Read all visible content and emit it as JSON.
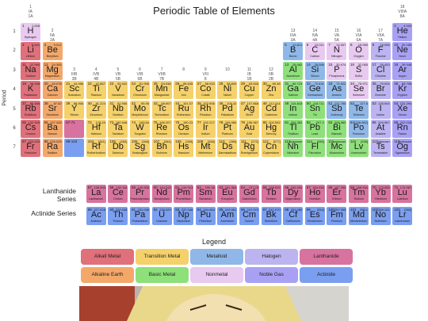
{
  "title": "Periodic Table of Elements",
  "period_label": "Period",
  "lanthanide_label": "Lanthanide Series",
  "actinide_label": "Actinide Series",
  "legend_title": "Legend",
  "colors": {
    "alkali": "#e0707a",
    "alkaline": "#f3a86a",
    "transition": "#f5d16b",
    "metalloid": "#8fb8e8",
    "nonmetal": "#e8c9f0",
    "halogen": "#bbb4f0",
    "noble": "#a8a1f3",
    "basic": "#8ee07a",
    "lanthanide": "#d7739e",
    "actinide": "#7a9ef0"
  },
  "legend": [
    {
      "label": "Alkali Metal",
      "cat": "alkali"
    },
    {
      "label": "Transition Metal",
      "cat": "transition"
    },
    {
      "label": "Metalloid",
      "cat": "metalloid"
    },
    {
      "label": "Halogen",
      "cat": "halogen"
    },
    {
      "label": "Lanthanide",
      "cat": "lanthanide"
    },
    {
      "label": "Alkaline Earth",
      "cat": "alkaline"
    },
    {
      "label": "Basic Metal",
      "cat": "basic"
    },
    {
      "label": "Nonmetal",
      "cat": "nonmetal"
    },
    {
      "label": "Noble Gas",
      "cat": "noble"
    },
    {
      "label": "Actinide",
      "cat": "actinide"
    }
  ],
  "groups": [
    {
      "g": 1,
      "text": "1\nIA\n1A"
    },
    {
      "g": 2,
      "text": "2\nIIA\n2A"
    },
    {
      "g": 3,
      "text": "3\nIIIB\n3B"
    },
    {
      "g": 4,
      "text": "4\nIVB\n4B"
    },
    {
      "g": 5,
      "text": "5\nVB\n5B"
    },
    {
      "g": 6,
      "text": "6\nVIB\n6B"
    },
    {
      "g": 7,
      "text": "7\nVIIB\n7B"
    },
    {
      "g": 8,
      "text": "8\n"
    },
    {
      "g": 9,
      "text": "9\nVIII\n8"
    },
    {
      "g": 10,
      "text": "10\n"
    },
    {
      "g": 11,
      "text": "11\nIB\n1B"
    },
    {
      "g": 12,
      "text": "12\nIIB\n2B"
    },
    {
      "g": 13,
      "text": "13\nIIIA\n3A"
    },
    {
      "g": 14,
      "text": "14\nIVA\n4A"
    },
    {
      "g": 15,
      "text": "15\nVA\n5A"
    },
    {
      "g": 16,
      "text": "16\nVIA\n6A"
    },
    {
      "g": 17,
      "text": "17\nVIIA\n7A"
    },
    {
      "g": 18,
      "text": "18\nVIIIA\n8A"
    }
  ],
  "periods": [
    "1",
    "2",
    "3",
    "4",
    "5",
    "6",
    "7"
  ],
  "elements": [
    {
      "n": 1,
      "s": "H",
      "name": "Hydrogen",
      "m": "1.008",
      "g": 1,
      "p": 1,
      "c": "nonmetal"
    },
    {
      "n": 2,
      "s": "He",
      "name": "Helium",
      "m": "4.003",
      "g": 18,
      "p": 1,
      "c": "noble"
    },
    {
      "n": 3,
      "s": "Li",
      "name": "Lithium",
      "m": "6.941",
      "g": 1,
      "p": 2,
      "c": "alkali"
    },
    {
      "n": 4,
      "s": "Be",
      "name": "Beryllium",
      "m": "9.012",
      "g": 2,
      "p": 2,
      "c": "alkaline"
    },
    {
      "n": 5,
      "s": "B",
      "name": "Boron",
      "m": "10.811",
      "g": 13,
      "p": 2,
      "c": "metalloid"
    },
    {
      "n": 6,
      "s": "C",
      "name": "Carbon",
      "m": "12.011",
      "g": 14,
      "p": 2,
      "c": "nonmetal"
    },
    {
      "n": 7,
      "s": "N",
      "name": "Nitrogen",
      "m": "14.007",
      "g": 15,
      "p": 2,
      "c": "nonmetal"
    },
    {
      "n": 8,
      "s": "O",
      "name": "Oxygen",
      "m": "15.999",
      "g": 16,
      "p": 2,
      "c": "nonmetal"
    },
    {
      "n": 9,
      "s": "F",
      "name": "Fluorine",
      "m": "18.998",
      "g": 17,
      "p": 2,
      "c": "halogen"
    },
    {
      "n": 10,
      "s": "Ne",
      "name": "Neon",
      "m": "20.180",
      "g": 18,
      "p": 2,
      "c": "noble"
    },
    {
      "n": 11,
      "s": "Na",
      "name": "Sodium",
      "m": "22.990",
      "g": 1,
      "p": 3,
      "c": "alkali"
    },
    {
      "n": 12,
      "s": "Mg",
      "name": "Magnesium",
      "m": "24.305",
      "g": 2,
      "p": 3,
      "c": "alkaline"
    },
    {
      "n": 13,
      "s": "Al",
      "name": "Aluminium",
      "m": "26.982",
      "g": 13,
      "p": 3,
      "c": "basic"
    },
    {
      "n": 14,
      "s": "Si",
      "name": "Silicon",
      "m": "28.086",
      "g": 14,
      "p": 3,
      "c": "metalloid"
    },
    {
      "n": 15,
      "s": "P",
      "name": "Phosphorus",
      "m": "30.974",
      "g": 15,
      "p": 3,
      "c": "nonmetal"
    },
    {
      "n": 16,
      "s": "S",
      "name": "Sulfur",
      "m": "32.065",
      "g": 16,
      "p": 3,
      "c": "nonmetal"
    },
    {
      "n": 17,
      "s": "Cl",
      "name": "Chlorine",
      "m": "35.453",
      "g": 17,
      "p": 3,
      "c": "halogen"
    },
    {
      "n": 18,
      "s": "Ar",
      "name": "Argon",
      "m": "39.948",
      "g": 18,
      "p": 3,
      "c": "noble"
    },
    {
      "n": 19,
      "s": "K",
      "name": "Potassium",
      "m": "39.098",
      "g": 1,
      "p": 4,
      "c": "alkali"
    },
    {
      "n": 20,
      "s": "Ca",
      "name": "Calcium",
      "m": "40.078",
      "g": 2,
      "p": 4,
      "c": "alkaline"
    },
    {
      "n": 21,
      "s": "Sc",
      "name": "Scandium",
      "m": "44.956",
      "g": 3,
      "p": 4,
      "c": "transition"
    },
    {
      "n": 22,
      "s": "Ti",
      "name": "Titanium",
      "m": "47.867",
      "g": 4,
      "p": 4,
      "c": "transition"
    },
    {
      "n": 23,
      "s": "V",
      "name": "Vanadium",
      "m": "50.942",
      "g": 5,
      "p": 4,
      "c": "transition"
    },
    {
      "n": 24,
      "s": "Cr",
      "name": "Chromium",
      "m": "51.996",
      "g": 6,
      "p": 4,
      "c": "transition"
    },
    {
      "n": 25,
      "s": "Mn",
      "name": "Manganese",
      "m": "54.938",
      "g": 7,
      "p": 4,
      "c": "transition"
    },
    {
      "n": 26,
      "s": "Fe",
      "name": "Iron",
      "m": "55.845",
      "g": 8,
      "p": 4,
      "c": "transition"
    },
    {
      "n": 27,
      "s": "Co",
      "name": "Cobalt",
      "m": "58.933",
      "g": 9,
      "p": 4,
      "c": "transition"
    },
    {
      "n": 28,
      "s": "Ni",
      "name": "Nickel",
      "m": "58.693",
      "g": 10,
      "p": 4,
      "c": "transition"
    },
    {
      "n": 29,
      "s": "Cu",
      "name": "Copper",
      "m": "63.546",
      "g": 11,
      "p": 4,
      "c": "transition"
    },
    {
      "n": 30,
      "s": "Zn",
      "name": "Zinc",
      "m": "65.38",
      "g": 12,
      "p": 4,
      "c": "transition"
    },
    {
      "n": 31,
      "s": "Ga",
      "name": "Gallium",
      "m": "69.723",
      "g": 13,
      "p": 4,
      "c": "basic"
    },
    {
      "n": 32,
      "s": "Ge",
      "name": "Germanium",
      "m": "72.631",
      "g": 14,
      "p": 4,
      "c": "metalloid"
    },
    {
      "n": 33,
      "s": "As",
      "name": "Arsenic",
      "m": "74.922",
      "g": 15,
      "p": 4,
      "c": "metalloid"
    },
    {
      "n": 34,
      "s": "Se",
      "name": "Selenium",
      "m": "78.971",
      "g": 16,
      "p": 4,
      "c": "nonmetal"
    },
    {
      "n": 35,
      "s": "Br",
      "name": "Bromine",
      "m": "79.904",
      "g": 17,
      "p": 4,
      "c": "halogen"
    },
    {
      "n": 36,
      "s": "Kr",
      "name": "Krypton",
      "m": "83.798",
      "g": 18,
      "p": 4,
      "c": "noble"
    },
    {
      "n": 37,
      "s": "Rb",
      "name": "Rubidium",
      "m": "85.468",
      "g": 1,
      "p": 5,
      "c": "alkali"
    },
    {
      "n": 38,
      "s": "Sr",
      "name": "Strontium",
      "m": "87.62",
      "g": 2,
      "p": 5,
      "c": "alkaline"
    },
    {
      "n": 39,
      "s": "Y",
      "name": "Yttrium",
      "m": "88.906",
      "g": 3,
      "p": 5,
      "c": "transition"
    },
    {
      "n": 40,
      "s": "Zr",
      "name": "Zirconium",
      "m": "91.224",
      "g": 4,
      "p": 5,
      "c": "transition"
    },
    {
      "n": 41,
      "s": "Nb",
      "name": "Niobium",
      "m": "92.906",
      "g": 5,
      "p": 5,
      "c": "transition"
    },
    {
      "n": 42,
      "s": "Mo",
      "name": "Molybdenum",
      "m": "95.95",
      "g": 6,
      "p": 5,
      "c": "transition"
    },
    {
      "n": 43,
      "s": "Tc",
      "name": "Technetium",
      "m": "98.907",
      "g": 7,
      "p": 5,
      "c": "transition"
    },
    {
      "n": 44,
      "s": "Ru",
      "name": "Ruthenium",
      "m": "101.07",
      "g": 8,
      "p": 5,
      "c": "transition"
    },
    {
      "n": 45,
      "s": "Rh",
      "name": "Rhodium",
      "m": "102.906",
      "g": 9,
      "p": 5,
      "c": "transition"
    },
    {
      "n": 46,
      "s": "Pd",
      "name": "Palladium",
      "m": "106.42",
      "g": 10,
      "p": 5,
      "c": "transition"
    },
    {
      "n": 47,
      "s": "Ag",
      "name": "Silver",
      "m": "107.868",
      "g": 11,
      "p": 5,
      "c": "transition"
    },
    {
      "n": 48,
      "s": "Cd",
      "name": "Cadmium",
      "m": "112.414",
      "g": 12,
      "p": 5,
      "c": "transition"
    },
    {
      "n": 49,
      "s": "In",
      "name": "Indium",
      "m": "114.818",
      "g": 13,
      "p": 5,
      "c": "basic"
    },
    {
      "n": 50,
      "s": "Sn",
      "name": "Tin",
      "m": "118.711",
      "g": 14,
      "p": 5,
      "c": "basic"
    },
    {
      "n": 51,
      "s": "Sb",
      "name": "Antimony",
      "m": "121.760",
      "g": 15,
      "p": 5,
      "c": "metalloid"
    },
    {
      "n": 52,
      "s": "Te",
      "name": "Tellurium",
      "m": "127.6",
      "g": 16,
      "p": 5,
      "c": "metalloid"
    },
    {
      "n": 53,
      "s": "I",
      "name": "Iodine",
      "m": "126.904",
      "g": 17,
      "p": 5,
      "c": "halogen"
    },
    {
      "n": 54,
      "s": "Xe",
      "name": "Xenon",
      "m": "131.294",
      "g": 18,
      "p": 5,
      "c": "noble"
    },
    {
      "n": 55,
      "s": "Cs",
      "name": "Cesium",
      "m": "132.905",
      "g": 1,
      "p": 6,
      "c": "alkali"
    },
    {
      "n": 56,
      "s": "Ba",
      "name": "Barium",
      "m": "137.328",
      "g": 2,
      "p": 6,
      "c": "alkaline"
    },
    {
      "n": "57-71",
      "s": "",
      "name": "",
      "m": "",
      "g": 3,
      "p": 6,
      "c": "lanthanide"
    },
    {
      "n": 72,
      "s": "Hf",
      "name": "Hafnium",
      "m": "178.49",
      "g": 4,
      "p": 6,
      "c": "transition"
    },
    {
      "n": 73,
      "s": "Ta",
      "name": "Tantalum",
      "m": "180.948",
      "g": 5,
      "p": 6,
      "c": "transition"
    },
    {
      "n": 74,
      "s": "W",
      "name": "Tungsten",
      "m": "183.84",
      "g": 6,
      "p": 6,
      "c": "transition"
    },
    {
      "n": 75,
      "s": "Re",
      "name": "Rhenium",
      "m": "186.207",
      "g": 7,
      "p": 6,
      "c": "transition"
    },
    {
      "n": 76,
      "s": "Os",
      "name": "Osmium",
      "m": "190.23",
      "g": 8,
      "p": 6,
      "c": "transition"
    },
    {
      "n": 77,
      "s": "Ir",
      "name": "Iridium",
      "m": "192.217",
      "g": 9,
      "p": 6,
      "c": "transition"
    },
    {
      "n": 78,
      "s": "Pt",
      "name": "Platinum",
      "m": "195.085",
      "g": 10,
      "p": 6,
      "c": "transition"
    },
    {
      "n": 79,
      "s": "Au",
      "name": "Gold",
      "m": "196.967",
      "g": 11,
      "p": 6,
      "c": "transition"
    },
    {
      "n": 80,
      "s": "Hg",
      "name": "Mercury",
      "m": "200.592",
      "g": 12,
      "p": 6,
      "c": "transition"
    },
    {
      "n": 81,
      "s": "Tl",
      "name": "Thallium",
      "m": "204.383",
      "g": 13,
      "p": 6,
      "c": "basic"
    },
    {
      "n": 82,
      "s": "Pb",
      "name": "Lead",
      "m": "207.2",
      "g": 14,
      "p": 6,
      "c": "basic"
    },
    {
      "n": 83,
      "s": "Bi",
      "name": "Bismuth",
      "m": "208.980",
      "g": 15,
      "p": 6,
      "c": "basic"
    },
    {
      "n": 84,
      "s": "Po",
      "name": "Polonium",
      "m": "[208.982]",
      "g": 16,
      "p": 6,
      "c": "metalloid"
    },
    {
      "n": 85,
      "s": "At",
      "name": "Astatine",
      "m": "209.987",
      "g": 17,
      "p": 6,
      "c": "halogen"
    },
    {
      "n": 86,
      "s": "Rn",
      "name": "Radon",
      "m": "222.018",
      "g": 18,
      "p": 6,
      "c": "noble"
    },
    {
      "n": 87,
      "s": "Fr",
      "name": "Francium",
      "m": "223.020",
      "g": 1,
      "p": 7,
      "c": "alkali"
    },
    {
      "n": 88,
      "s": "Ra",
      "name": "Radium",
      "m": "226.025",
      "g": 2,
      "p": 7,
      "c": "alkaline"
    },
    {
      "n": "89-103",
      "s": "",
      "name": "",
      "m": "",
      "g": 3,
      "p": 7,
      "c": "actinide"
    },
    {
      "n": 104,
      "s": "Rf",
      "name": "Rutherfordium",
      "m": "[261]",
      "g": 4,
      "p": 7,
      "c": "transition"
    },
    {
      "n": 105,
      "s": "Db",
      "name": "Dubnium",
      "m": "[262]",
      "g": 5,
      "p": 7,
      "c": "transition"
    },
    {
      "n": 106,
      "s": "Sg",
      "name": "Seaborgium",
      "m": "[266]",
      "g": 6,
      "p": 7,
      "c": "transition"
    },
    {
      "n": 107,
      "s": "Bh",
      "name": "Bohrium",
      "m": "[264]",
      "g": 7,
      "p": 7,
      "c": "transition"
    },
    {
      "n": 108,
      "s": "Hs",
      "name": "Hassium",
      "m": "[269]",
      "g": 8,
      "p": 7,
      "c": "transition"
    },
    {
      "n": 109,
      "s": "Mt",
      "name": "Meitnerium",
      "m": "[268]",
      "g": 9,
      "p": 7,
      "c": "transition"
    },
    {
      "n": 110,
      "s": "Ds",
      "name": "Darmstadtium",
      "m": "[269]",
      "g": 10,
      "p": 7,
      "c": "transition"
    },
    {
      "n": 111,
      "s": "Rg",
      "name": "Roentgenium",
      "m": "[272]",
      "g": 11,
      "p": 7,
      "c": "transition"
    },
    {
      "n": 112,
      "s": "Cn",
      "name": "Copernicium",
      "m": "[277]",
      "g": 12,
      "p": 7,
      "c": "transition"
    },
    {
      "n": 113,
      "s": "Nh",
      "name": "Nihonium",
      "m": "unknown",
      "g": 13,
      "p": 7,
      "c": "basic"
    },
    {
      "n": 114,
      "s": "Fl",
      "name": "Flerovium",
      "m": "[289]",
      "g": 14,
      "p": 7,
      "c": "basic"
    },
    {
      "n": 115,
      "s": "Mc",
      "name": "Moscovium",
      "m": "unknown",
      "g": 15,
      "p": 7,
      "c": "basic"
    },
    {
      "n": 116,
      "s": "Lv",
      "name": "Livermorium",
      "m": "[298]",
      "g": 16,
      "p": 7,
      "c": "basic"
    },
    {
      "n": 117,
      "s": "Ts",
      "name": "Tennessine",
      "m": "unknown",
      "g": 17,
      "p": 7,
      "c": "halogen"
    },
    {
      "n": 118,
      "s": "Og",
      "name": "Oganesson",
      "m": "unknown",
      "g": 18,
      "p": 7,
      "c": "noble"
    }
  ],
  "lanthanides": [
    {
      "n": 57,
      "s": "La",
      "name": "Lanthanum",
      "m": "138.905"
    },
    {
      "n": 58,
      "s": "Ce",
      "name": "Cerium",
      "m": "140.116"
    },
    {
      "n": 59,
      "s": "Pr",
      "name": "Praseodymium",
      "m": "140.908"
    },
    {
      "n": 60,
      "s": "Nd",
      "name": "Neodymium",
      "m": "144.243"
    },
    {
      "n": 61,
      "s": "Pm",
      "name": "Promethium",
      "m": "144.913"
    },
    {
      "n": 62,
      "s": "Sm",
      "name": "Samarium",
      "m": "150.36"
    },
    {
      "n": 63,
      "s": "Eu",
      "name": "Europium",
      "m": "151.964"
    },
    {
      "n": 64,
      "s": "Gd",
      "name": "Gadolinium",
      "m": "157.25"
    },
    {
      "n": 65,
      "s": "Tb",
      "name": "Terbium",
      "m": "158.925"
    },
    {
      "n": 66,
      "s": "Dy",
      "name": "Dysprosium",
      "m": "162.500"
    },
    {
      "n": 67,
      "s": "Ho",
      "name": "Holmium",
      "m": "164.930"
    },
    {
      "n": 68,
      "s": "Er",
      "name": "Erbium",
      "m": "167.259"
    },
    {
      "n": 69,
      "s": "Tm",
      "name": "Thulium",
      "m": "168.934"
    },
    {
      "n": 70,
      "s": "Yb",
      "name": "Ytterbium",
      "m": "173.055"
    },
    {
      "n": 71,
      "s": "Lu",
      "name": "Lutetium",
      "m": "174.967"
    }
  ],
  "actinides": [
    {
      "n": 89,
      "s": "Ac",
      "name": "Actinium",
      "m": "227.028"
    },
    {
      "n": 90,
      "s": "Th",
      "name": "Thorium",
      "m": "232.038"
    },
    {
      "n": 91,
      "s": "Pa",
      "name": "Protactinium",
      "m": "231.036"
    },
    {
      "n": 92,
      "s": "U",
      "name": "Uranium",
      "m": "238.029"
    },
    {
      "n": 93,
      "s": "Np",
      "name": "Neptunium",
      "m": "237.048"
    },
    {
      "n": 94,
      "s": "Pu",
      "name": "Plutonium",
      "m": "244.064"
    },
    {
      "n": 95,
      "s": "Am",
      "name": "Americium",
      "m": "243.061"
    },
    {
      "n": 96,
      "s": "Cm",
      "name": "Curium",
      "m": "247.070"
    },
    {
      "n": 97,
      "s": "Bk",
      "name": "Berkelium",
      "m": "247.070"
    },
    {
      "n": 98,
      "s": "Cf",
      "name": "Californium",
      "m": "251.080"
    },
    {
      "n": 99,
      "s": "Es",
      "name": "Einsteinium",
      "m": "[254]"
    },
    {
      "n": 100,
      "s": "Fm",
      "name": "Fermium",
      "m": "257.095"
    },
    {
      "n": 101,
      "s": "Md",
      "name": "Mendelevium",
      "m": "258.1"
    },
    {
      "n": 102,
      "s": "No",
      "name": "Nobelium",
      "m": "259.101"
    },
    {
      "n": 103,
      "s": "Lr",
      "name": "Lawrencium",
      "m": "[262]"
    }
  ]
}
